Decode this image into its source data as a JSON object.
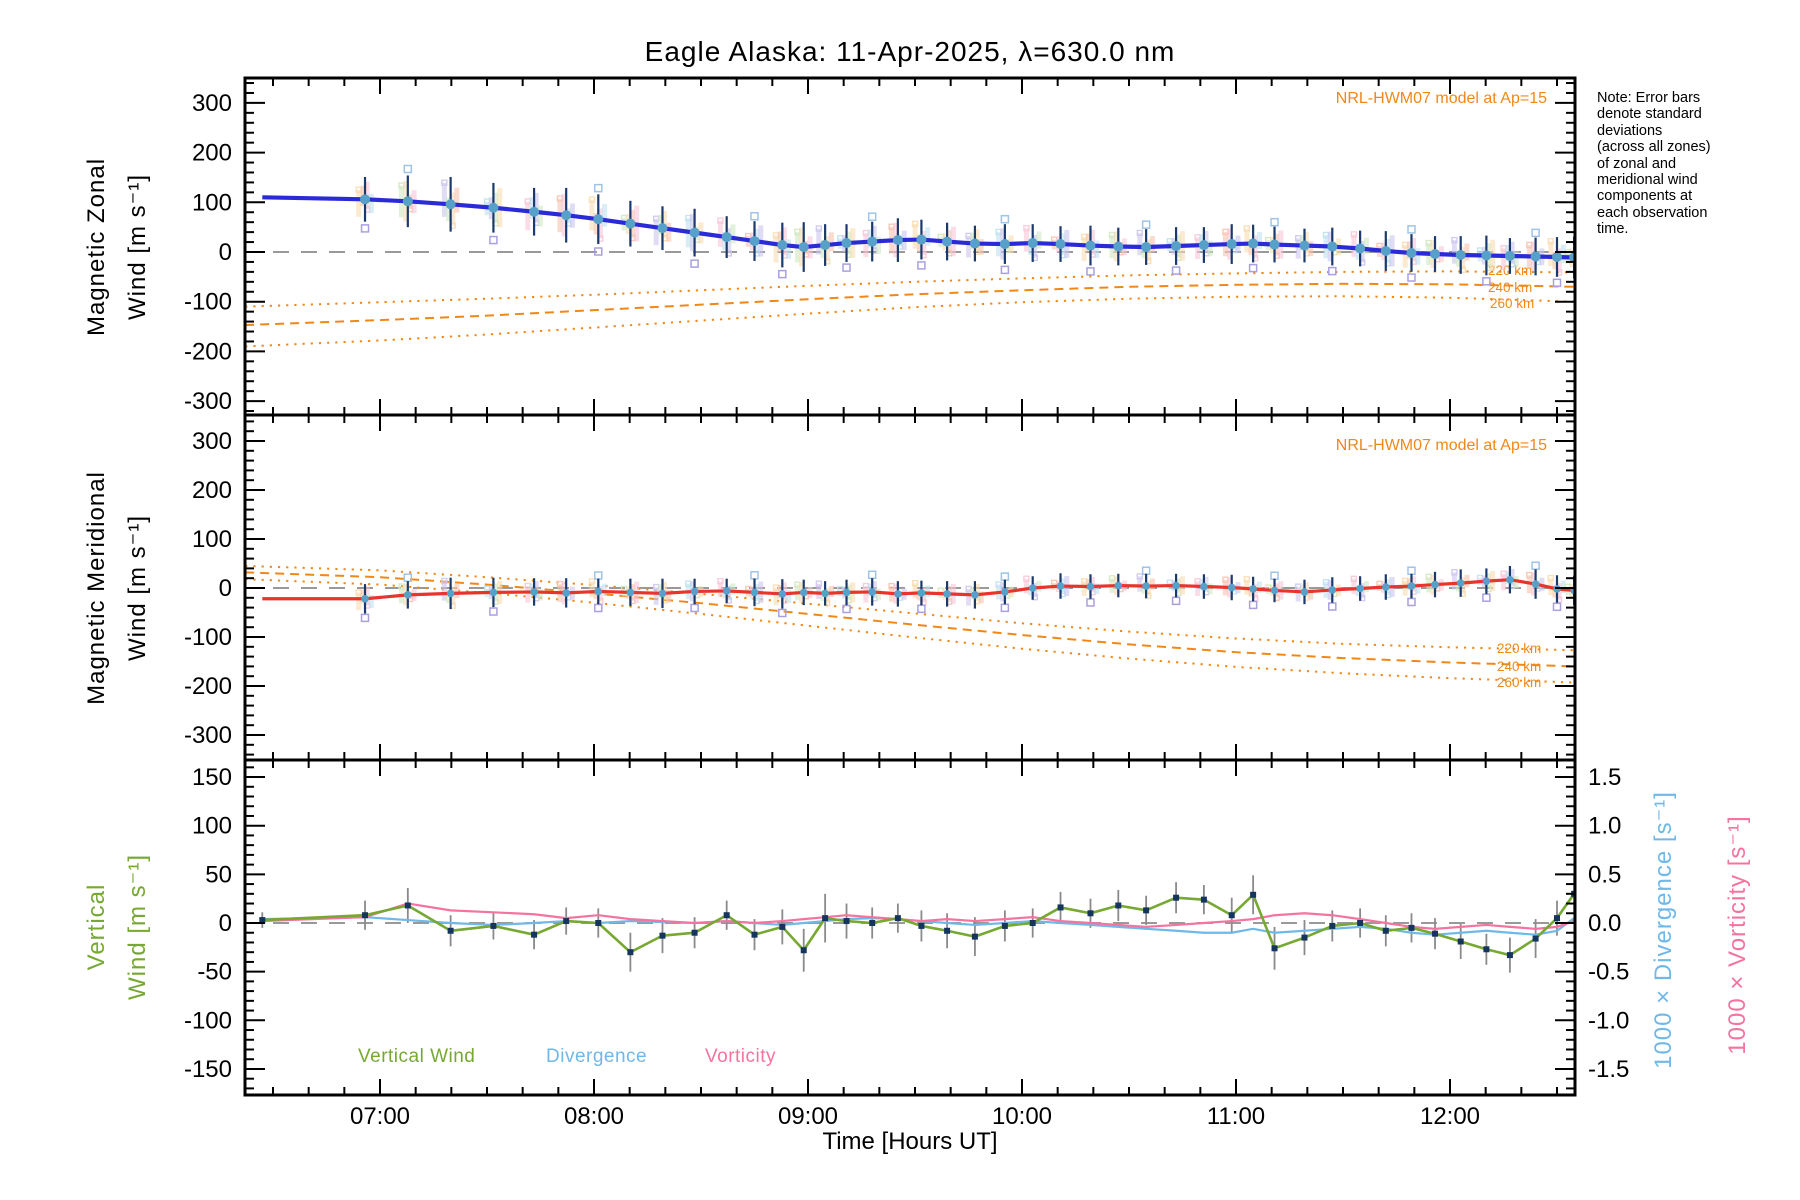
{
  "title": "Eagle Alaska: 11-Apr-2025, λ=630.0 nm",
  "note_lines": [
    "Note: Error bars",
    "denote standard",
    "deviations",
    "(across all zones)",
    "of zonal and",
    "meridional wind",
    "components at",
    "each observation",
    "time."
  ],
  "xaxis": {
    "label": "Time [Hours UT]",
    "tick_labels": [
      "07:00",
      "08:00",
      "09:00",
      "10:00",
      "11:00",
      "12:00"
    ],
    "tick_hours": [
      7,
      8,
      9,
      10,
      11,
      12
    ],
    "minor_step_minutes": 10,
    "range_hours": [
      6.37,
      12.58
    ]
  },
  "colors": {
    "zonal_line": "#2a2ad9",
    "meridional_line": "#e8342a",
    "marker": "#57a0c9",
    "error_bar": "#1b3a6b",
    "vertical_line": "#76a832",
    "vertical_marker": "#16355e",
    "vertical_error_bar": "#8a8a8a",
    "divergence_line": "#70b8e8",
    "vorticity_line": "#f473a0",
    "model_orange": "#f08818",
    "zero_dash": "#999999",
    "zone_ghosts": [
      "#f7c4ae",
      "#f9ddb0",
      "#cfe9c2",
      "#cdc6ee",
      "#bfe2ef",
      "#f9c6d8"
    ],
    "ghost_squares": [
      "#a9a0e0",
      "#9fc4e8"
    ]
  },
  "x_hours": [
    6.45,
    6.93,
    7.13,
    7.33,
    7.53,
    7.72,
    7.87,
    8.02,
    8.17,
    8.32,
    8.47,
    8.62,
    8.75,
    8.88,
    8.98,
    9.08,
    9.18,
    9.3,
    9.42,
    9.53,
    9.65,
    9.78,
    9.92,
    10.05,
    10.18,
    10.32,
    10.45,
    10.58,
    10.72,
    10.85,
    10.98,
    11.08,
    11.18,
    11.32,
    11.45,
    11.58,
    11.7,
    11.82,
    11.93,
    12.05,
    12.17,
    12.28,
    12.4,
    12.5,
    12.58
  ],
  "chart_data": [
    {
      "type": "line",
      "title": "Magnetic Zonal Wind",
      "ylabel_lines": [
        "Magnetic Zonal",
        "Wind [m s⁻¹]"
      ],
      "ylim": [
        -350,
        350
      ],
      "yticks": {
        "labels": [
          "300",
          "200",
          "100",
          "0",
          "-100",
          "-200",
          "-300"
        ],
        "values": [
          300,
          200,
          100,
          0,
          -100,
          -200,
          -300
        ]
      },
      "series": [
        {
          "name": "Measured zonal wind (zone average)",
          "values": [
            110,
            106,
            102,
            96,
            89,
            81,
            74,
            66,
            57,
            48,
            39,
            30,
            22,
            14,
            10,
            14,
            18,
            21,
            24,
            25,
            21,
            17,
            16,
            18,
            16,
            13,
            11,
            10,
            12,
            14,
            16,
            17,
            15,
            13,
            11,
            7,
            2,
            -2,
            -4,
            -6,
            -7,
            -8,
            -9,
            -10,
            -11
          ],
          "errors": [
            0,
            45,
            52,
            55,
            50,
            48,
            55,
            50,
            46,
            44,
            48,
            42,
            40,
            45,
            50,
            42,
            38,
            40,
            44,
            40,
            38,
            36,
            40,
            38,
            36,
            40,
            38,
            36,
            38,
            36,
            40,
            38,
            36,
            34,
            38,
            36,
            40,
            38,
            36,
            38,
            40,
            36,
            38,
            40,
            42
          ]
        }
      ],
      "model": {
        "label": "NRL-HWM07 model at Ap=15",
        "km_labels": [
          "220 km",
          "240 km",
          "260 km"
        ],
        "x_hours": [
          6.37,
          7.0,
          7.5,
          8.0,
          8.5,
          9.0,
          9.5,
          10.0,
          10.5,
          11.0,
          11.5,
          12.0,
          12.58
        ],
        "altitudes": [
          {
            "name": "220 km",
            "style": "dotted",
            "values": [
              -110,
              -101,
              -94,
              -86,
              -77,
              -68,
              -60,
              -53,
              -47,
              -43,
              -40,
              -39,
              -41
            ]
          },
          {
            "name": "240 km",
            "style": "dashed",
            "values": [
              -147,
              -137,
              -128,
              -117,
              -106,
              -95,
              -85,
              -77,
              -70,
              -66,
              -64,
              -65,
              -70
            ]
          },
          {
            "name": "260 km",
            "style": "dotted",
            "values": [
              -190,
              -178,
              -166,
              -152,
              -138,
              -124,
              -111,
              -101,
              -94,
              -90,
              -89,
              -92,
              -100
            ]
          }
        ]
      }
    },
    {
      "type": "line",
      "title": "Magnetic Meridional Wind",
      "ylabel_lines": [
        "Magnetic Meridional",
        "Wind [m s⁻¹]"
      ],
      "ylim": [
        -350,
        350
      ],
      "yticks": {
        "labels": [
          "300",
          "200",
          "100",
          "0",
          "-100",
          "-200",
          "-300"
        ],
        "values": [
          300,
          200,
          100,
          0,
          -100,
          -200,
          -300
        ]
      },
      "series": [
        {
          "name": "Measured meridional wind (zone average)",
          "values": [
            -22,
            -22,
            -14,
            -11,
            -9,
            -8,
            -10,
            -7,
            -9,
            -11,
            -7,
            -6,
            -9,
            -12,
            -9,
            -11,
            -9,
            -8,
            -12,
            -10,
            -12,
            -14,
            -8,
            0,
            4,
            3,
            5,
            4,
            5,
            3,
            1,
            -2,
            -5,
            -8,
            -4,
            -1,
            2,
            4,
            7,
            10,
            14,
            17,
            8,
            -2,
            -5
          ],
          "errors": [
            0,
            30,
            28,
            32,
            30,
            28,
            30,
            26,
            28,
            30,
            26,
            25,
            28,
            30,
            26,
            25,
            26,
            28,
            26,
            25,
            26,
            28,
            25,
            24,
            26,
            25,
            24,
            25,
            24,
            25,
            26,
            25,
            24,
            25,
            26,
            25,
            26,
            25,
            26,
            28,
            26,
            28,
            30,
            28,
            30
          ]
        }
      ],
      "model": {
        "label": "NRL-HWM07 model at Ap=15",
        "km_labels": [
          "220 km",
          "240 km",
          "260 km"
        ],
        "x_hours": [
          6.37,
          7.0,
          7.5,
          8.0,
          8.5,
          9.0,
          9.5,
          10.0,
          10.5,
          11.0,
          11.5,
          12.0,
          12.58
        ],
        "altitudes": [
          {
            "name": "220 km",
            "style": "dotted",
            "values": [
              45,
              36,
              22,
              6,
              -12,
              -32,
              -52,
              -72,
              -89,
              -103,
              -114,
              -121,
              -127
            ]
          },
          {
            "name": "240 km",
            "style": "dashed",
            "values": [
              32,
              22,
              7,
              -11,
              -31,
              -53,
              -75,
              -96,
              -115,
              -131,
              -143,
              -152,
              -160
            ]
          },
          {
            "name": "260 km",
            "style": "dotted",
            "values": [
              18,
              7,
              -10,
              -30,
              -53,
              -77,
              -101,
              -124,
              -144,
              -161,
              -174,
              -184,
              -193
            ]
          }
        ]
      }
    },
    {
      "type": "line",
      "title": "Vertical Wind, Divergence and Vorticity",
      "ylabel_lines": [
        "Vertical",
        "Wind [m s⁻¹]"
      ],
      "ylim_left": [
        -175,
        175
      ],
      "ylim_right": [
        -1.5,
        1.5
      ],
      "yticks": {
        "labels": [
          "150",
          "100",
          "50",
          "0",
          "-50",
          "-100",
          "-150"
        ],
        "values": [
          150,
          100,
          50,
          0,
          -50,
          -100,
          -150
        ]
      },
      "right_yticks": {
        "labels": [
          "1.5",
          "1.0",
          "0.5",
          "0.0",
          "-0.5",
          "-1.0",
          "-1.5"
        ],
        "values": [
          1.5,
          1.0,
          0.5,
          0.0,
          -0.5,
          -1.0,
          -1.5
        ]
      },
      "right_axis_labels": {
        "divergence": "1000 × Divergence [s⁻¹]",
        "vorticity": "1000 × Vorticity [s⁻¹]"
      },
      "legend": {
        "items": [
          {
            "label": "Vertical Wind",
            "color_key": "vertical_line"
          },
          {
            "label": "Divergence",
            "color_key": "divergence_line"
          },
          {
            "label": "Vorticity",
            "color_key": "vorticity_line"
          }
        ]
      },
      "series": [
        {
          "name": "Vertical Wind",
          "axis": "left",
          "values": [
            3,
            8,
            18,
            -8,
            -3,
            -12,
            2,
            0,
            -30,
            -13,
            -10,
            8,
            -12,
            -4,
            -28,
            5,
            2,
            0,
            5,
            -3,
            -8,
            -14,
            -3,
            0,
            16,
            10,
            18,
            13,
            26,
            24,
            8,
            29,
            -26,
            -15,
            -3,
            0,
            -8,
            -5,
            -11,
            -19,
            -27,
            -33,
            -16,
            5,
            30
          ],
          "errors": [
            8,
            15,
            18,
            16,
            14,
            15,
            14,
            15,
            20,
            18,
            16,
            15,
            16,
            18,
            22,
            25,
            18,
            16,
            15,
            16,
            18,
            20,
            16,
            15,
            16,
            15,
            16,
            15,
            16,
            15,
            18,
            20,
            22,
            18,
            16,
            15,
            16,
            15,
            16,
            18,
            16,
            18,
            20,
            18,
            20
          ]
        },
        {
          "name": "Divergence",
          "axis": "right",
          "values": [
            0.04,
            0.06,
            0.03,
            0.0,
            -0.02,
            0.0,
            0.02,
            0.0,
            0.02,
            0.01,
            0.0,
            0.02,
            0.0,
            -0.02,
            0.0,
            0.02,
            0.04,
            0.05,
            0.04,
            0.02,
            0.0,
            -0.02,
            0.0,
            0.02,
            0.0,
            -0.02,
            -0.04,
            -0.06,
            -0.08,
            -0.1,
            -0.1,
            -0.06,
            -0.1,
            -0.08,
            -0.06,
            -0.04,
            -0.06,
            -0.1,
            -0.12,
            -0.1,
            -0.08,
            -0.1,
            -0.12,
            -0.08,
            0.05
          ]
        },
        {
          "name": "Vorticity",
          "axis": "right",
          "values": [
            0.02,
            0.06,
            0.2,
            0.13,
            0.11,
            0.09,
            0.05,
            0.08,
            0.04,
            0.02,
            0.0,
            0.02,
            0.0,
            0.02,
            0.04,
            0.06,
            0.08,
            0.06,
            0.04,
            0.02,
            0.04,
            0.02,
            0.04,
            0.06,
            0.02,
            0.0,
            -0.02,
            -0.04,
            -0.02,
            0.0,
            0.02,
            0.04,
            0.08,
            0.1,
            0.08,
            0.04,
            0.0,
            -0.04,
            -0.06,
            -0.04,
            -0.02,
            -0.04,
            -0.06,
            -0.04,
            0.02
          ]
        }
      ]
    }
  ]
}
